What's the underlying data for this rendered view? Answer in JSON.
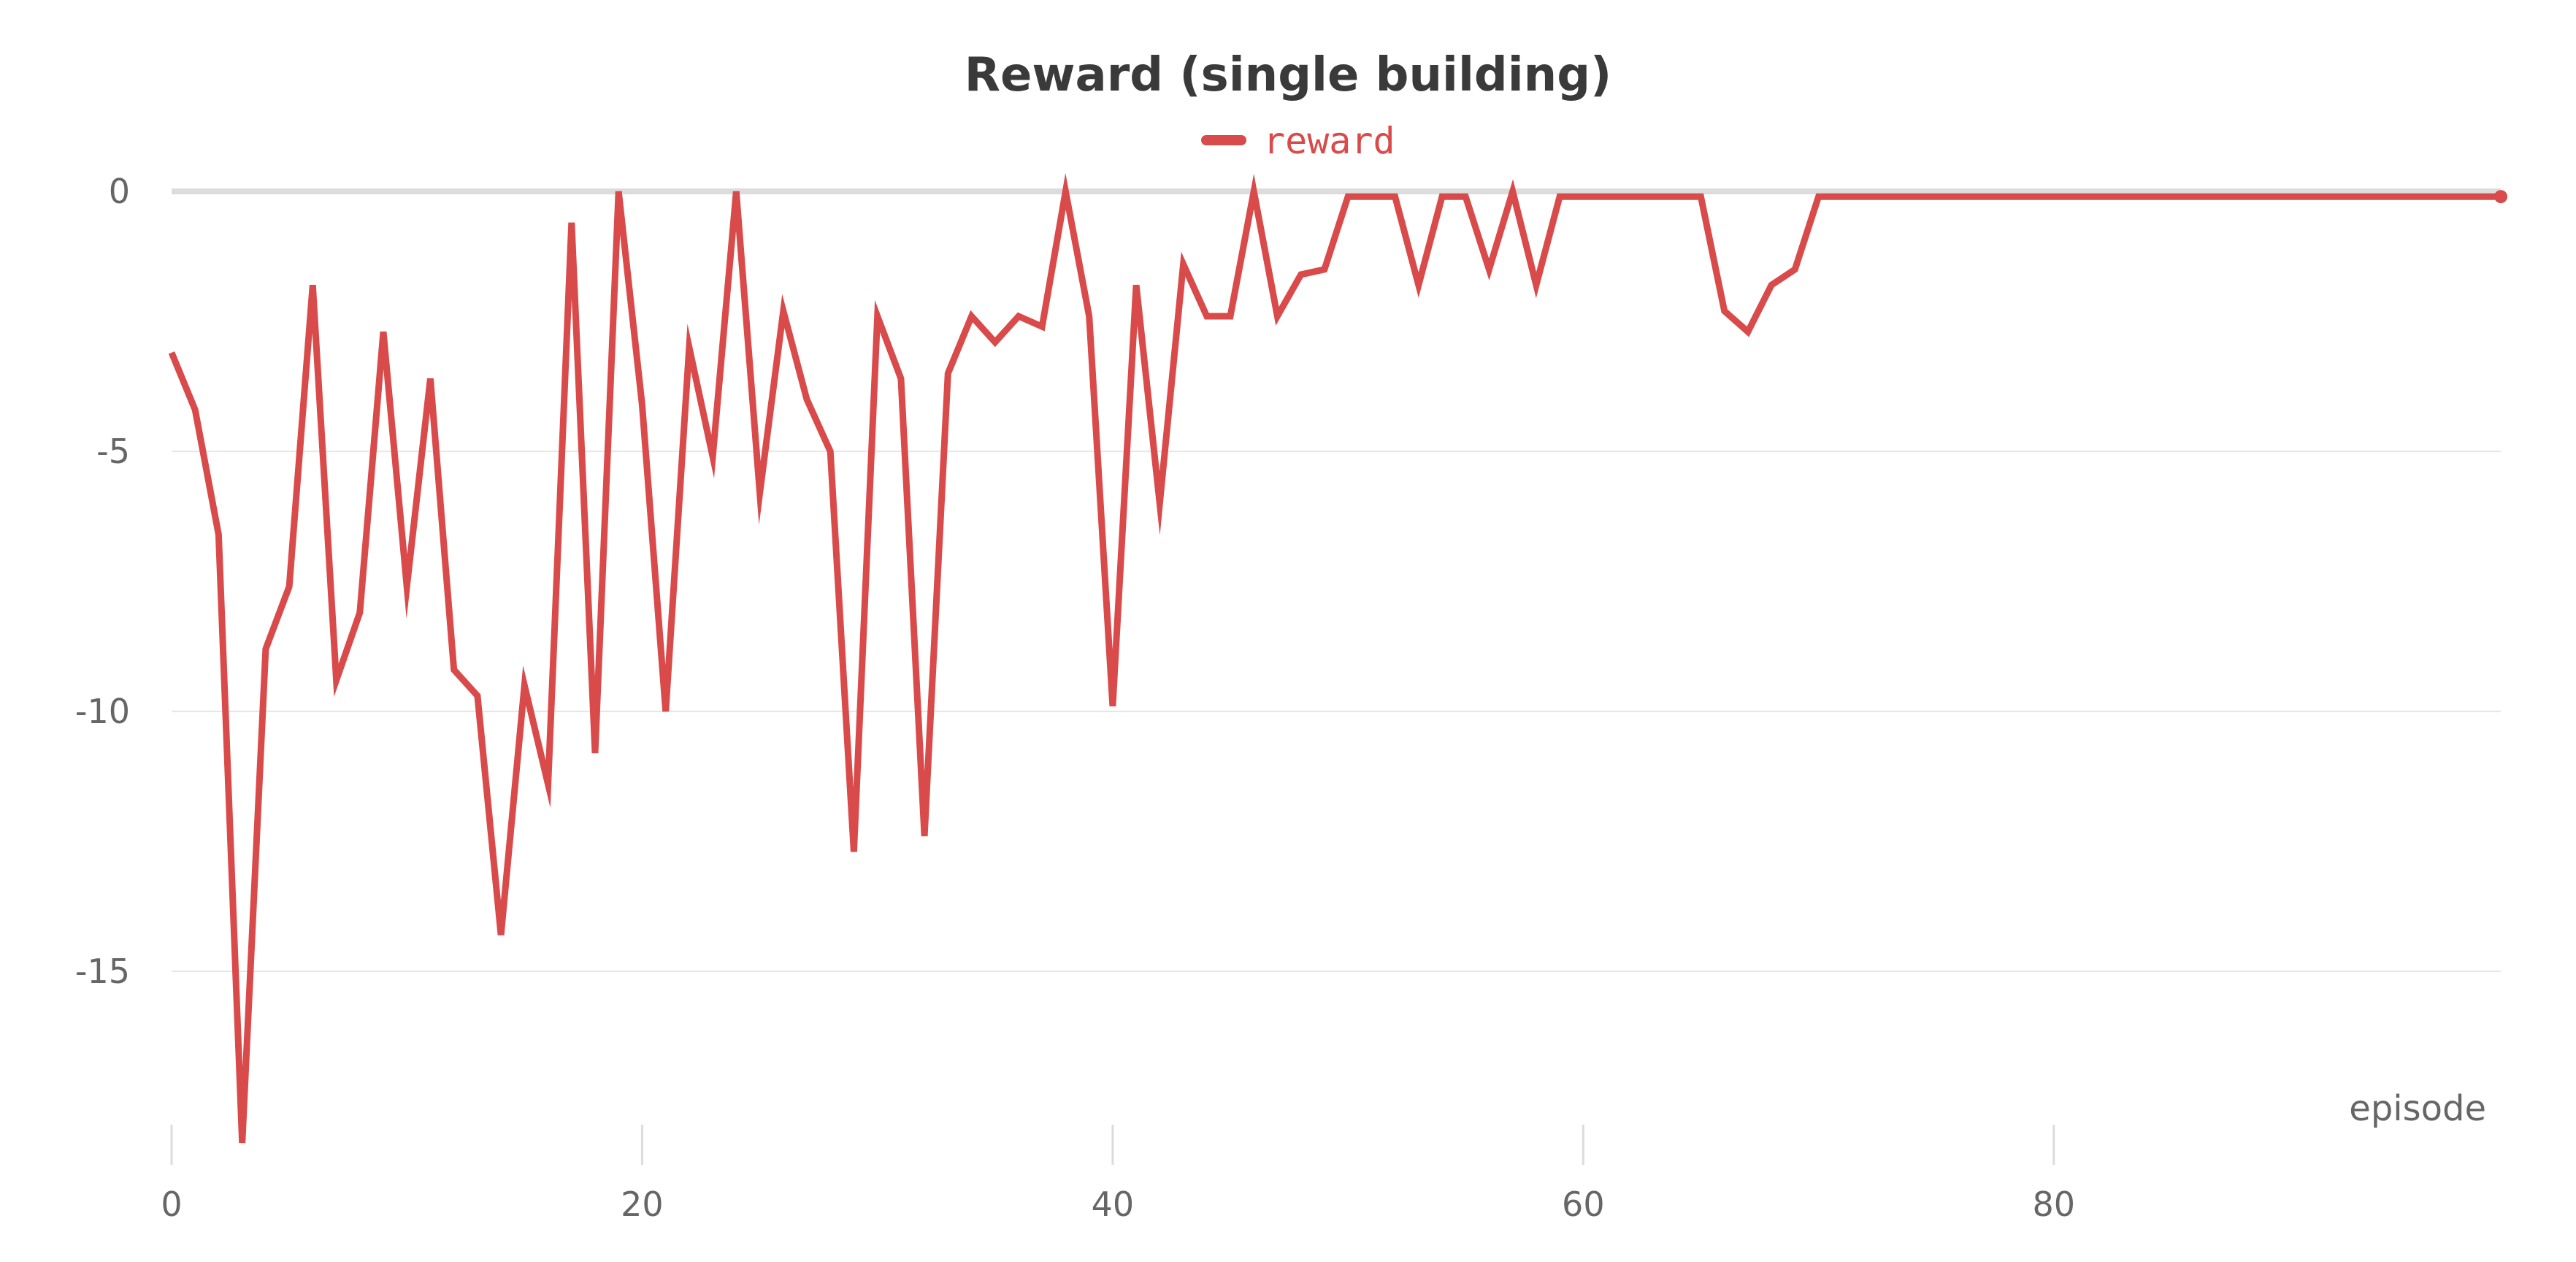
{
  "chart_data": {
    "type": "line",
    "title": "Reward (single building)",
    "xlabel": "episode",
    "ylabel": "",
    "xlim": [
      0,
      99
    ],
    "ylim": [
      -18.3,
      0.1
    ],
    "x_ticks": [
      0,
      20,
      40,
      60,
      80
    ],
    "y_ticks": [
      0,
      -5,
      -10,
      -15
    ],
    "grid": true,
    "legend_position": "top-center",
    "series": [
      {
        "name": "reward",
        "color": "#d94a4a",
        "x": [
          0,
          1,
          2,
          3,
          4,
          5,
          6,
          7,
          8,
          9,
          10,
          11,
          12,
          13,
          14,
          15,
          16,
          17,
          18,
          19,
          20,
          21,
          22,
          23,
          24,
          25,
          26,
          27,
          28,
          29,
          30,
          31,
          32,
          33,
          34,
          35,
          36,
          37,
          38,
          39,
          40,
          41,
          42,
          43,
          44,
          45,
          46,
          47,
          48,
          49,
          50,
          51,
          52,
          53,
          54,
          55,
          56,
          57,
          58,
          59,
          60,
          61,
          62,
          63,
          64,
          65,
          66,
          67,
          68,
          69,
          70,
          71,
          72,
          73,
          74,
          75,
          76,
          77,
          78,
          79,
          80,
          81,
          82,
          83,
          84,
          85,
          86,
          87,
          88,
          89,
          90,
          91,
          92,
          93,
          94,
          95,
          96,
          97,
          98,
          99
        ],
        "values": [
          -3.1,
          -4.2,
          -6.6,
          -18.3,
          -8.8,
          -7.6,
          -1.8,
          -9.4,
          -8.1,
          -2.7,
          -7.6,
          -3.6,
          -9.2,
          -9.7,
          -14.3,
          -9.5,
          -11.4,
          -0.6,
          -10.8,
          0.0,
          -4.1,
          -10.0,
          -3.0,
          -5.1,
          0.0,
          -5.8,
          -2.3,
          -4.0,
          -5.0,
          -12.7,
          -2.4,
          -3.6,
          -12.4,
          -3.5,
          -2.4,
          -2.9,
          -2.4,
          -2.6,
          0.0,
          -2.4,
          -9.9,
          -1.8,
          -6.0,
          -1.4,
          -2.4,
          -2.4,
          0.0,
          -2.4,
          -1.6,
          -1.5,
          -0.1,
          -0.1,
          -0.1,
          -1.8,
          -0.1,
          -0.1,
          -1.5,
          0.0,
          -1.8,
          -0.1,
          -0.1,
          -0.1,
          -0.1,
          -0.1,
          -0.1,
          -0.1,
          -2.3,
          -2.7,
          -1.8,
          -1.5,
          -0.1,
          -0.1,
          -0.1,
          -0.1,
          -0.1,
          -0.1,
          -0.1,
          -0.1,
          -0.1,
          -0.1,
          -0.1,
          -0.1,
          -0.1,
          -0.1,
          -0.1,
          -0.1,
          -0.1,
          -0.1,
          -0.1,
          -0.1,
          -0.1,
          -0.1,
          -0.1,
          -0.1,
          -0.1,
          -0.1,
          -0.1,
          -0.1,
          -0.1,
          -0.1
        ]
      }
    ]
  },
  "style": {
    "grid_color": "#e6e6e6",
    "zero_line_color": "#dcdcdc",
    "tick_mark_color": "#dcdcdc"
  }
}
